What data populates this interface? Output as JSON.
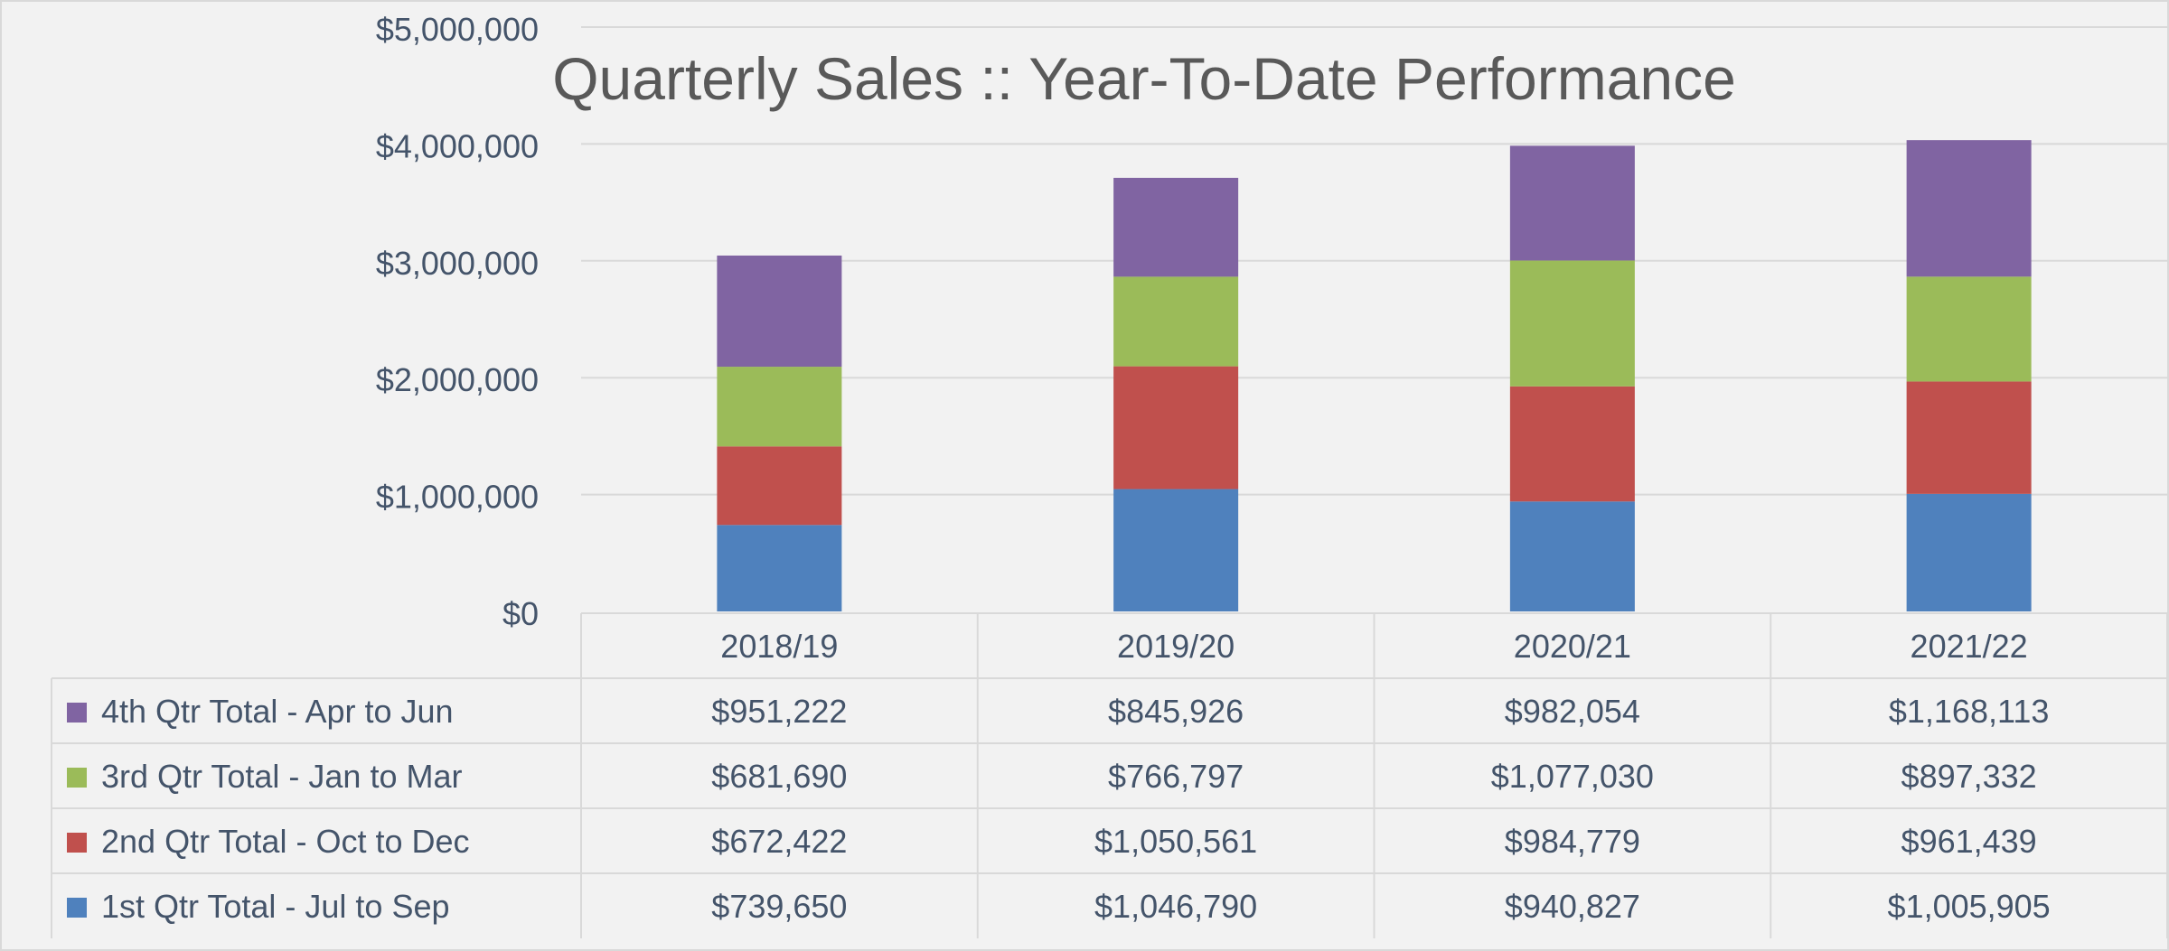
{
  "chart_data": {
    "type": "bar",
    "stacked": true,
    "title": "Quarterly Sales ::  Year-To-Date Performance",
    "categories": [
      "2018/19",
      "2019/20",
      "2020/21",
      "2021/22"
    ],
    "ylim": [
      0,
      5000000
    ],
    "yticks": [
      "$0",
      "$1,000,000",
      "$2,000,000",
      "$3,000,000",
      "$4,000,000",
      "$5,000,000"
    ],
    "ytick_values": [
      0,
      1000000,
      2000000,
      3000000,
      4000000,
      5000000
    ],
    "grid": true,
    "legend": "data-table",
    "series": [
      {
        "name": "1st Qtr Total - Jul to Sep",
        "color": "#4f81bd",
        "values": [
          739650,
          1046790,
          940827,
          1005905
        ],
        "labels": [
          "$739,650",
          "$1,046,790",
          "$940,827",
          "$1,005,905"
        ]
      },
      {
        "name": "2nd Qtr Total - Oct to Dec",
        "color": "#c0504d",
        "values": [
          672422,
          1050561,
          984779,
          961439
        ],
        "labels": [
          "$672,422",
          "$1,050,561",
          "$984,779",
          "$961,439"
        ]
      },
      {
        "name": "3rd Qtr Total - Jan to Mar",
        "color": "#9bbb59",
        "values": [
          681690,
          766797,
          1077030,
          897332
        ],
        "labels": [
          "$681,690",
          "$766,797",
          "$1,077,030",
          "$897,332"
        ]
      },
      {
        "name": "4th Qtr Total - Apr to Jun",
        "color": "#8064a2",
        "values": [
          951222,
          845926,
          982054,
          1168113
        ],
        "labels": [
          "$951,222",
          "$845,926",
          "$982,054",
          "$1,168,113"
        ]
      }
    ]
  }
}
